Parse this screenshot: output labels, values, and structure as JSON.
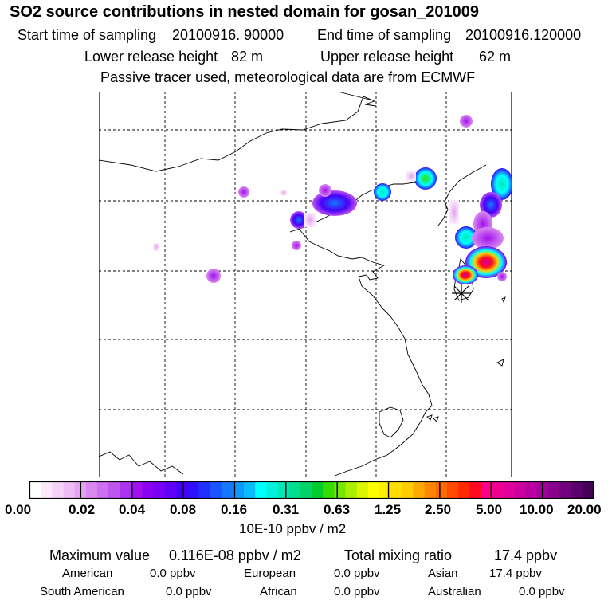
{
  "header": {
    "title": "SO2 source contributions in nested domain for gosan_201009",
    "start_label": "Start time of sampling",
    "start_value": "20100916. 90000",
    "end_label": "End time of sampling",
    "end_value": "20100916.120000",
    "lower_label": "Lower release height",
    "lower_value": "82 m",
    "upper_label": "Upper release height",
    "upper_value": "62 m",
    "note": "Passive tracer used, meteorological data are from ECMWF"
  },
  "colorbar": {
    "labels": [
      "0.00",
      "0.02",
      "0.04",
      "0.08",
      "0.16",
      "0.31",
      "0.63",
      "1.25",
      "2.50",
      "5.00",
      "10.00",
      "20.00"
    ],
    "colors": [
      "#ffffff",
      "#fbe8fb",
      "#f5d2f7",
      "#eebbf4",
      "#e6a3f1",
      "#d98af0",
      "#cc6ff0",
      "#bf55ef",
      "#ad33ef",
      "#a011ee",
      "#8a00f0",
      "#7700f5",
      "#5f00f8",
      "#4800fa",
      "#3010fc",
      "#2030ff",
      "#1a55ff",
      "#1477ff",
      "#0f99ff",
      "#0abbff",
      "#00ffff",
      "#00f2dd",
      "#00e8b8",
      "#00de90",
      "#00d468",
      "#00cc30",
      "#33dd00",
      "#77e600",
      "#aaee00",
      "#ddf500",
      "#ffff00",
      "#ffee00",
      "#ffdd00",
      "#ffcc00",
      "#ffaa00",
      "#ff8800",
      "#ff6a00",
      "#ff4a00",
      "#ff2a00",
      "#ff0a20",
      "#ff0088",
      "#f00090",
      "#e0009a",
      "#cc00a0",
      "#b800a0",
      "#a00099",
      "#88008c",
      "#70007c",
      "#5a006a",
      "#440055"
    ],
    "units": "10E-10 ppbv / m2"
  },
  "summary": {
    "max_label": "Maximum value",
    "max_value": "0.116E-08 ppbv / m2",
    "total_label": "Total mixing ratio",
    "total_value": "17.4 ppbv"
  },
  "regions": [
    {
      "name": "American",
      "value": "0.0 ppbv"
    },
    {
      "name": "European",
      "value": "0.0 ppbv"
    },
    {
      "name": "Asian",
      "value": "17.4 ppbv"
    },
    {
      "name": "South American",
      "value": "0.0 ppbv"
    },
    {
      "name": "African",
      "value": "0.0 ppbv"
    },
    {
      "name": "Australian",
      "value": "0.0 ppbv"
    }
  ],
  "map": {
    "receptor_marker": "asterisk-marker",
    "source_symbol": "so2-plume"
  }
}
